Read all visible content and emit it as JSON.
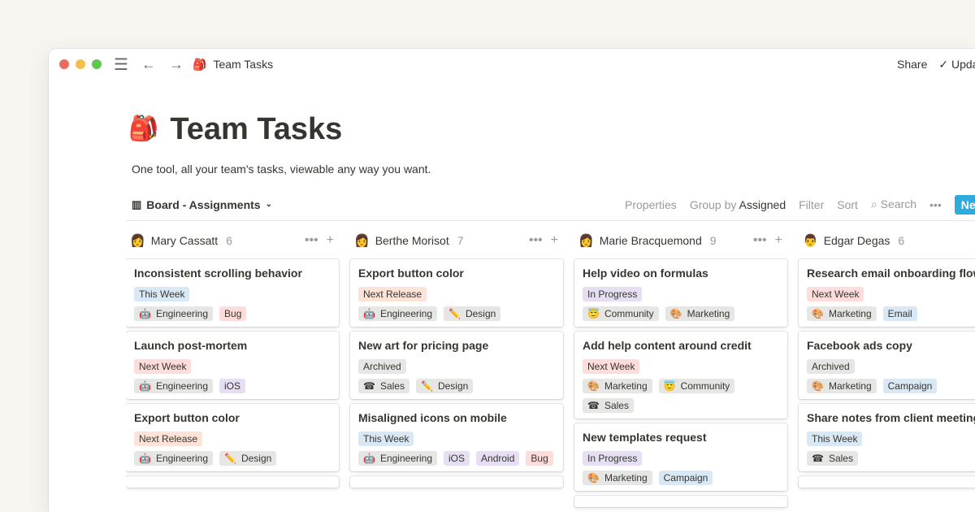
{
  "window": {
    "title": "Team Tasks",
    "page_emoji": "🎒",
    "share": "Share",
    "updates": "Updates"
  },
  "page": {
    "title": "Team Tasks",
    "description": "One tool, all your team's tasks, viewable any way you want."
  },
  "toolbar": {
    "view": "Board - Assignments",
    "properties": "Properties",
    "group_by": "Group by",
    "group_value": "Assigned",
    "filter": "Filter",
    "sort": "Sort",
    "search": "Search",
    "new": "New"
  },
  "colors": {
    "This Week": "#d9e8f5",
    "Next Week": "#fddcdc",
    "Next Release": "#fde2d7",
    "In Progress": "#e7def3",
    "Archived": "#e6e6e4",
    "Bug": "#fddcdc",
    "iOS": "#e7def3",
    "Android": "#e7def3",
    "Email": "#d9e8f5",
    "Campaign": "#d9e8f5",
    "default": "#e6e6e4"
  },
  "columns": [
    {
      "name": "Mary Cassatt",
      "count": "6",
      "avatar": "👩",
      "cards": [
        {
          "title": "Inconsistent scrolling behavior",
          "status": "This Week",
          "tags": [
            {
              "emoji": "🤖",
              "label": "Engineering"
            },
            {
              "label": "Bug"
            }
          ]
        },
        {
          "title": "Launch post-mortem",
          "status": "Next Week",
          "tags": [
            {
              "emoji": "🤖",
              "label": "Engineering"
            },
            {
              "label": "iOS"
            }
          ]
        },
        {
          "title": "Export button color",
          "status": "Next Release",
          "tags": [
            {
              "emoji": "🤖",
              "label": "Engineering"
            },
            {
              "emoji": "✏️",
              "label": "Design"
            }
          ]
        }
      ]
    },
    {
      "name": "Berthe Morisot",
      "count": "7",
      "avatar": "👩",
      "cards": [
        {
          "title": "Export button color",
          "status": "Next Release",
          "tags": [
            {
              "emoji": "🤖",
              "label": "Engineering"
            },
            {
              "emoji": "✏️",
              "label": "Design"
            }
          ]
        },
        {
          "title": "New art for pricing page",
          "status": "Archived",
          "tags": [
            {
              "emoji": "☎",
              "label": "Sales"
            },
            {
              "emoji": "✏️",
              "label": "Design"
            }
          ]
        },
        {
          "title": "Misaligned icons on mobile",
          "status": "This Week",
          "tags": [
            {
              "emoji": "🤖",
              "label": "Engineering"
            },
            {
              "label": "iOS"
            },
            {
              "label": "Android"
            },
            {
              "label": "Bug"
            }
          ]
        }
      ]
    },
    {
      "name": "Marie Bracquemond",
      "count": "9",
      "avatar": "👩",
      "cards": [
        {
          "title": "Help video on formulas",
          "status": "In Progress",
          "tags": [
            {
              "emoji": "😇",
              "label": "Community"
            },
            {
              "emoji": "🎨",
              "label": "Marketing"
            }
          ]
        },
        {
          "title": "Add help content around credit",
          "status": "Next Week",
          "tags": [
            {
              "emoji": "🎨",
              "label": "Marketing"
            },
            {
              "emoji": "😇",
              "label": "Community"
            },
            {
              "emoji": "☎",
              "label": "Sales"
            }
          ]
        },
        {
          "title": "New templates request",
          "status": "In Progress",
          "tags": [
            {
              "emoji": "🎨",
              "label": "Marketing"
            },
            {
              "label": "Campaign"
            }
          ]
        }
      ]
    },
    {
      "name": "Edgar Degas",
      "count": "6",
      "avatar": "👨",
      "cards": [
        {
          "title": "Research email onboarding flows",
          "status": "Next Week",
          "tags": [
            {
              "emoji": "🎨",
              "label": "Marketing"
            },
            {
              "label": "Email"
            }
          ]
        },
        {
          "title": "Facebook ads copy",
          "status": "Archived",
          "tags": [
            {
              "emoji": "🎨",
              "label": "Marketing"
            },
            {
              "label": "Campaign"
            }
          ]
        },
        {
          "title": "Share notes from client meeting",
          "status": "This Week",
          "tags": [
            {
              "emoji": "☎",
              "label": "Sales"
            }
          ]
        }
      ]
    }
  ]
}
